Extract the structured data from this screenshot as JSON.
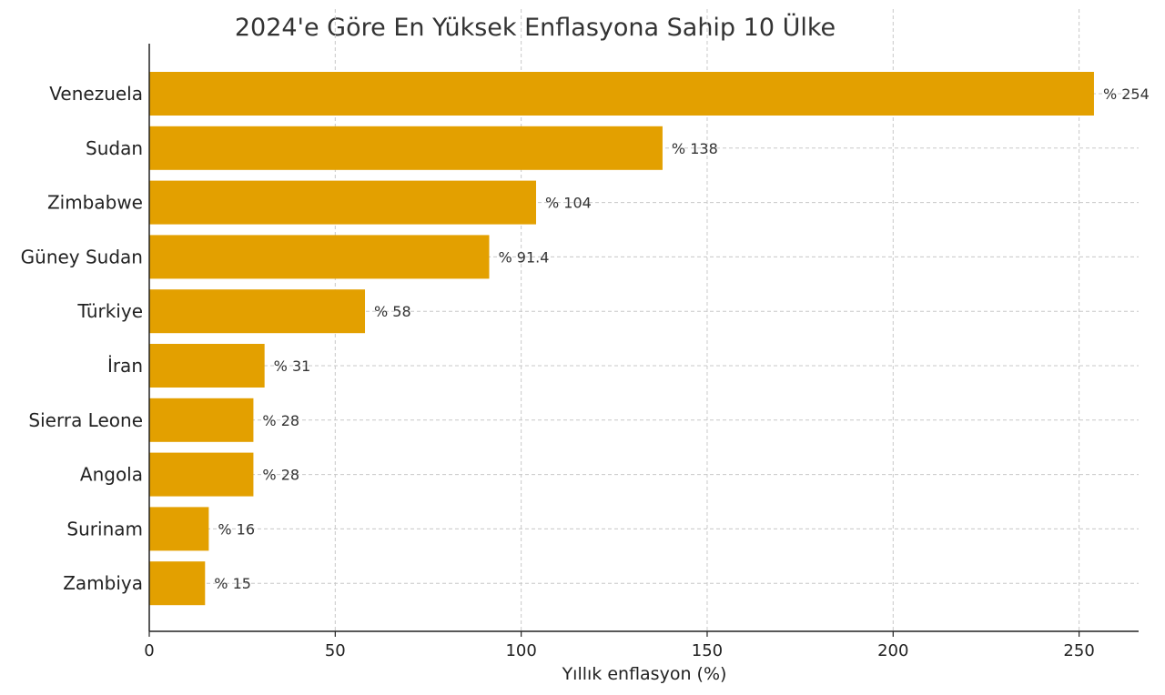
{
  "chart_data": {
    "type": "bar",
    "orientation": "horizontal",
    "title": "2024'e Göre En Yüksek Enflasyona Sahip 10 Ülke",
    "xlabel": "Yıllık enflasyon (%)",
    "ylabel": "",
    "categories": [
      "Venezuela",
      "Sudan",
      "Zimbabwe",
      "Güney Sudan",
      "Türkiye",
      "İran",
      "Sierra Leone",
      "Angola",
      "Surinam",
      "Zambiya"
    ],
    "values": [
      254,
      138,
      104,
      91.4,
      58,
      31,
      28,
      28,
      16,
      15
    ],
    "data_labels": [
      "% 254",
      "% 138",
      "% 104",
      "% 91.4",
      "% 58",
      "% 31",
      "% 28",
      "% 28",
      "% 16",
      "% 15"
    ],
    "xlim": [
      0,
      266
    ],
    "xticks": [
      0,
      50,
      100,
      150,
      200,
      250
    ],
    "xtick_labels": [
      "0",
      "50",
      "100",
      "150",
      "200",
      "250"
    ],
    "grid": true,
    "bar_color": "#E3A000"
  }
}
